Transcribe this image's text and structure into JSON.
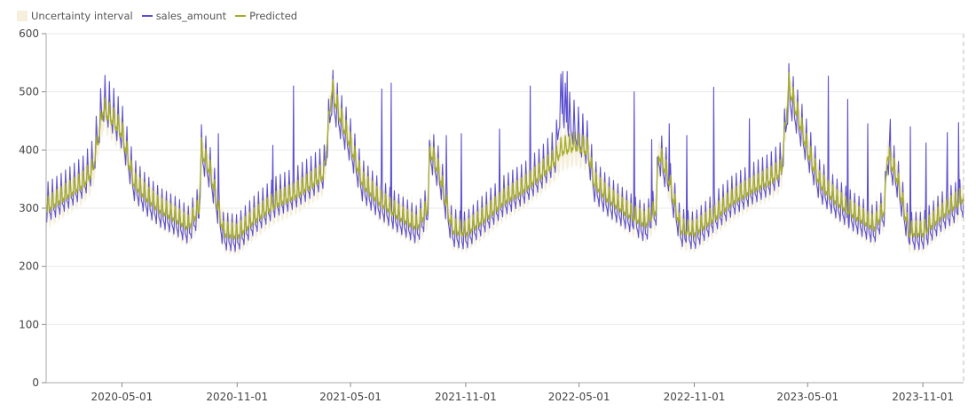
{
  "chart_data": {
    "type": "line",
    "title": "",
    "xlabel": "",
    "ylabel": "",
    "x_range": [
      "2020-01-01",
      "2024-01-05"
    ],
    "ylim": [
      0,
      600
    ],
    "grid": "horizontal",
    "legend_position": "top-left",
    "x_tick_labels": [
      "2020-05-01",
      "2020-11-01",
      "2021-05-01",
      "2021-11-01",
      "2022-05-01",
      "2022-11-01",
      "2023-05-01",
      "2023-11-01"
    ],
    "y_tick_labels": [
      "0",
      "100",
      "200",
      "300",
      "400",
      "500",
      "600"
    ],
    "legend": [
      {
        "name": "Uncertainty interval",
        "kind": "area",
        "color": "#f5efdc"
      },
      {
        "name": "sales_amount",
        "kind": "line",
        "color": "#5b4fcf"
      },
      {
        "name": "Predicted",
        "kind": "line",
        "color": "#a6ad2a"
      }
    ],
    "band_halfwidth": 30,
    "weekly_pattern_predicted": [
      -4,
      -8,
      2,
      20,
      6,
      -5,
      -11
    ],
    "weekly_pattern_actual": [
      -16,
      -26,
      5,
      46,
      14,
      -10,
      -13
    ],
    "series": [
      {
        "name": "Predicted",
        "color": "#a6ad2a",
        "points": [
          [
            "2020-01-01",
            300
          ],
          [
            "2020-01-20",
            315
          ],
          [
            "2020-02-10",
            330
          ],
          [
            "2020-03-01",
            345
          ],
          [
            "2020-03-15",
            365
          ],
          [
            "2020-04-01",
            470
          ],
          [
            "2020-04-15",
            455
          ],
          [
            "2020-05-01",
            430
          ],
          [
            "2020-05-20",
            345
          ],
          [
            "2020-06-10",
            320
          ],
          [
            "2020-07-01",
            300
          ],
          [
            "2020-07-25",
            285
          ],
          [
            "2020-08-15",
            270
          ],
          [
            "2020-09-01",
            300
          ],
          [
            "2020-09-05",
            400
          ],
          [
            "2020-09-20",
            360
          ],
          [
            "2020-10-10",
            260
          ],
          [
            "2020-11-01",
            255
          ],
          [
            "2020-12-01",
            285
          ],
          [
            "2021-01-01",
            310
          ],
          [
            "2021-02-01",
            325
          ],
          [
            "2021-03-01",
            345
          ],
          [
            "2021-03-20",
            360
          ],
          [
            "2021-04-01",
            505
          ],
          [
            "2021-04-15",
            455
          ],
          [
            "2021-05-01",
            410
          ],
          [
            "2021-05-20",
            345
          ],
          [
            "2021-06-15",
            315
          ],
          [
            "2021-07-15",
            290
          ],
          [
            "2021-08-15",
            270
          ],
          [
            "2021-09-01",
            300
          ],
          [
            "2021-09-05",
            400
          ],
          [
            "2021-09-20",
            360
          ],
          [
            "2021-10-10",
            265
          ],
          [
            "2021-11-01",
            260
          ],
          [
            "2021-12-01",
            285
          ],
          [
            "2022-01-01",
            315
          ],
          [
            "2022-02-01",
            335
          ],
          [
            "2022-03-01",
            360
          ],
          [
            "2022-03-25",
            385
          ],
          [
            "2022-04-01",
            400
          ],
          [
            "2022-04-25",
            410
          ],
          [
            "2022-05-15",
            400
          ],
          [
            "2022-05-25",
            345
          ],
          [
            "2022-06-15",
            320
          ],
          [
            "2022-07-15",
            295
          ],
          [
            "2022-08-15",
            275
          ],
          [
            "2022-09-01",
            300
          ],
          [
            "2022-09-05",
            395
          ],
          [
            "2022-09-20",
            355
          ],
          [
            "2022-10-10",
            265
          ],
          [
            "2022-11-01",
            260
          ],
          [
            "2022-12-01",
            285
          ],
          [
            "2023-01-01",
            315
          ],
          [
            "2023-02-01",
            335
          ],
          [
            "2023-03-01",
            350
          ],
          [
            "2023-03-20",
            365
          ],
          [
            "2023-04-01",
            510
          ],
          [
            "2023-04-15",
            460
          ],
          [
            "2023-05-01",
            400
          ],
          [
            "2023-05-20",
            345
          ],
          [
            "2023-06-15",
            315
          ],
          [
            "2023-07-15",
            290
          ],
          [
            "2023-08-15",
            270
          ],
          [
            "2023-09-01",
            300
          ],
          [
            "2023-09-05",
            395
          ],
          [
            "2023-09-20",
            355
          ],
          [
            "2023-10-10",
            260
          ],
          [
            "2023-11-01",
            260
          ],
          [
            "2023-12-01",
            290
          ],
          [
            "2024-01-05",
            320
          ]
        ]
      },
      {
        "name": "sales_amount",
        "color": "#5b4fcf",
        "points": [
          [
            "2020-01-01",
            300
          ],
          [
            "2020-01-20",
            312
          ],
          [
            "2020-02-10",
            328
          ],
          [
            "2020-03-01",
            345
          ],
          [
            "2020-03-15",
            370
          ],
          [
            "2020-04-01",
            480
          ],
          [
            "2020-04-15",
            460
          ],
          [
            "2020-05-01",
            430
          ],
          [
            "2020-05-20",
            340
          ],
          [
            "2020-06-10",
            312
          ],
          [
            "2020-07-01",
            292
          ],
          [
            "2020-07-25",
            278
          ],
          [
            "2020-08-15",
            262
          ],
          [
            "2020-09-01",
            295
          ],
          [
            "2020-09-05",
            395
          ],
          [
            "2020-09-20",
            355
          ],
          [
            "2020-10-10",
            252
          ],
          [
            "2020-11-01",
            248
          ],
          [
            "2020-12-01",
            282
          ],
          [
            "2021-01-01",
            310
          ],
          [
            "2021-02-01",
            325
          ],
          [
            "2021-03-01",
            345
          ],
          [
            "2021-03-20",
            362
          ],
          [
            "2021-04-01",
            490
          ],
          [
            "2021-04-15",
            448
          ],
          [
            "2021-05-01",
            405
          ],
          [
            "2021-05-20",
            338
          ],
          [
            "2021-06-15",
            308
          ],
          [
            "2021-07-15",
            283
          ],
          [
            "2021-08-15",
            262
          ],
          [
            "2021-09-01",
            295
          ],
          [
            "2021-09-05",
            395
          ],
          [
            "2021-09-20",
            355
          ],
          [
            "2021-10-10",
            258
          ],
          [
            "2021-11-01",
            252
          ],
          [
            "2021-12-01",
            282
          ],
          [
            "2022-01-01",
            312
          ],
          [
            "2022-02-01",
            332
          ],
          [
            "2022-03-01",
            358
          ],
          [
            "2022-03-25",
            390
          ],
          [
            "2022-04-01",
            480
          ],
          [
            "2022-04-20",
            440
          ],
          [
            "2022-05-15",
            400
          ],
          [
            "2022-05-25",
            338
          ],
          [
            "2022-06-15",
            312
          ],
          [
            "2022-07-15",
            288
          ],
          [
            "2022-08-15",
            265
          ],
          [
            "2022-09-01",
            295
          ],
          [
            "2022-09-05",
            390
          ],
          [
            "2022-09-20",
            350
          ],
          [
            "2022-10-10",
            258
          ],
          [
            "2022-11-01",
            252
          ],
          [
            "2022-12-01",
            282
          ],
          [
            "2023-01-01",
            312
          ],
          [
            "2023-02-01",
            332
          ],
          [
            "2023-03-01",
            348
          ],
          [
            "2023-03-20",
            368
          ],
          [
            "2023-04-01",
            495
          ],
          [
            "2023-04-15",
            452
          ],
          [
            "2023-05-01",
            398
          ],
          [
            "2023-05-20",
            338
          ],
          [
            "2023-06-15",
            308
          ],
          [
            "2023-07-15",
            283
          ],
          [
            "2023-08-15",
            262
          ],
          [
            "2023-09-01",
            295
          ],
          [
            "2023-09-05",
            390
          ],
          [
            "2023-09-20",
            350
          ],
          [
            "2023-10-10",
            252
          ],
          [
            "2023-11-01",
            252
          ],
          [
            "2023-12-01",
            285
          ],
          [
            "2024-01-05",
            310
          ]
        ],
        "spikes": [
          [
            "2020-10-02",
            428
          ],
          [
            "2020-12-28",
            408
          ],
          [
            "2021-01-30",
            510
          ],
          [
            "2021-06-20",
            505
          ],
          [
            "2021-07-05",
            515
          ],
          [
            "2021-10-01",
            425
          ],
          [
            "2021-10-25",
            428
          ],
          [
            "2021-12-25",
            436
          ],
          [
            "2022-02-12",
            510
          ],
          [
            "2022-04-05",
            535
          ],
          [
            "2022-04-12",
            535
          ],
          [
            "2022-07-28",
            500
          ],
          [
            "2022-08-25",
            418
          ],
          [
            "2022-09-22",
            445
          ],
          [
            "2022-10-20",
            425
          ],
          [
            "2022-12-02",
            508
          ],
          [
            "2023-01-28",
            454
          ],
          [
            "2023-06-03",
            527
          ],
          [
            "2023-07-04",
            487
          ],
          [
            "2023-08-05",
            445
          ],
          [
            "2023-09-10",
            453
          ],
          [
            "2023-10-12",
            440
          ],
          [
            "2023-11-06",
            412
          ],
          [
            "2023-12-10",
            430
          ],
          [
            "2023-12-28",
            447
          ]
        ]
      }
    ]
  }
}
